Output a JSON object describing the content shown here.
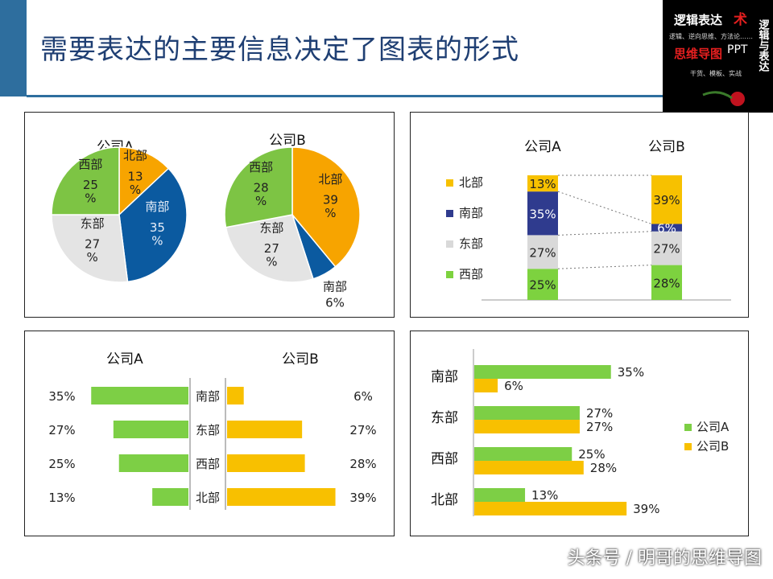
{
  "title": "需要表达的主要信息决定了图表的形式",
  "logo": {
    "line1": "逻辑表达",
    "star": "术",
    "line2": "逻辑、逆向思维、方法论……",
    "line3": "思维导图",
    "ppt": "PPT",
    "line4": "干货、模板、实战",
    "vertical": "逻辑与表达"
  },
  "watermark": "头条号 / 明哥的思维导图",
  "colors": {
    "north": "#f7a400",
    "south": "#0b5aa0",
    "east": "#e4e4e4",
    "west": "#7dc444",
    "north_bar": "#f7c100",
    "south_bar": "#2f3b8e",
    "east_bar": "#d9d9d9",
    "west_bar": "#7dd23f",
    "companyA": "#7dcf45",
    "companyB": "#f8c000"
  },
  "chart_data": [
    {
      "type": "pie",
      "pies": [
        {
          "name": "公司A",
          "slices": [
            {
              "label": "北部",
              "value": 13,
              "text": "13\n%"
            },
            {
              "label": "南部",
              "value": 35,
              "text": "35\n%"
            },
            {
              "label": "东部",
              "value": 27,
              "text": "27\n%"
            },
            {
              "label": "西部",
              "value": 25,
              "text": "25\n%"
            }
          ]
        },
        {
          "name": "公司B",
          "slices": [
            {
              "label": "北部",
              "value": 39,
              "text": "39\n%"
            },
            {
              "label": "南部",
              "value": 6,
              "text": "6%"
            },
            {
              "label": "东部",
              "value": 27,
              "text": "27\n%"
            },
            {
              "label": "西部",
              "value": 28,
              "text": "28\n%"
            }
          ]
        }
      ]
    },
    {
      "type": "bar",
      "stacked": true,
      "categories": [
        "公司A",
        "公司B"
      ],
      "series": [
        {
          "name": "西部",
          "values": [
            25,
            28
          ]
        },
        {
          "name": "东部",
          "values": [
            27,
            27
          ]
        },
        {
          "name": "南部",
          "values": [
            35,
            6
          ]
        },
        {
          "name": "北部",
          "values": [
            13,
            39
          ]
        }
      ],
      "legend": [
        "北部",
        "南部",
        "东部",
        "西部"
      ],
      "ylim": [
        0,
        100
      ]
    },
    {
      "type": "bar",
      "orientation": "horizontal-butterfly",
      "left_title": "公司A",
      "right_title": "公司B",
      "categories": [
        "南部",
        "东部",
        "西部",
        "北部"
      ],
      "left_values": [
        35,
        27,
        25,
        13
      ],
      "right_values": [
        6,
        27,
        28,
        39
      ],
      "left_labels": [
        "35%",
        "27%",
        "25%",
        "13%"
      ],
      "right_labels": [
        "6%",
        "27%",
        "28%",
        "39%"
      ],
      "xlim": [
        0,
        40
      ]
    },
    {
      "type": "bar",
      "orientation": "horizontal",
      "categories": [
        "南部",
        "东部",
        "西部",
        "北部"
      ],
      "series": [
        {
          "name": "公司A",
          "values": [
            35,
            27,
            25,
            13
          ]
        },
        {
          "name": "公司B",
          "values": [
            6,
            27,
            28,
            39
          ]
        }
      ],
      "legend_position": "right",
      "xlim": [
        0,
        40
      ]
    }
  ]
}
